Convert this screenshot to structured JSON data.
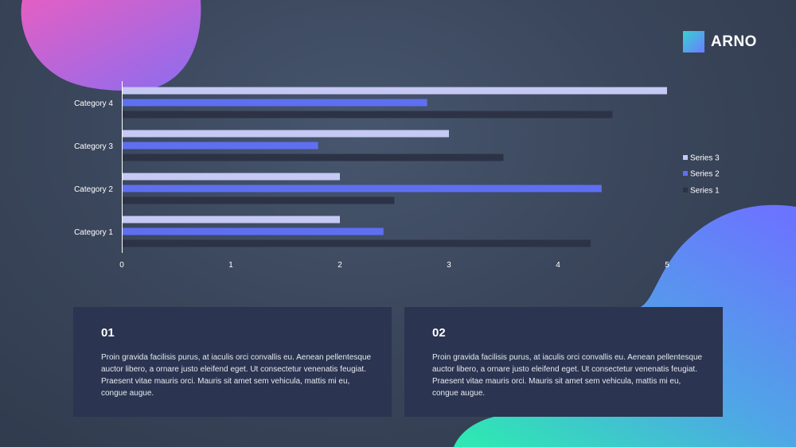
{
  "brand": {
    "name": "ARNO"
  },
  "colors": {
    "series3": "#c5c9f4",
    "series2": "#5f6ff2",
    "series1": "#2d3346",
    "card_bg": "#2b3450",
    "tick_text": "#ffffff"
  },
  "chart_data": {
    "type": "bar",
    "orientation": "horizontal",
    "title": "",
    "xlabel": "",
    "ylabel": "",
    "categories": [
      "Category 1",
      "Category 2",
      "Category 3",
      "Category 4"
    ],
    "series": [
      {
        "name": "Series 1",
        "values": [
          4.3,
          2.5,
          3.5,
          4.5
        ]
      },
      {
        "name": "Series 2",
        "values": [
          2.4,
          4.4,
          1.8,
          2.8
        ]
      },
      {
        "name": "Series 3",
        "values": [
          2.0,
          2.0,
          3.0,
          5.0
        ]
      }
    ],
    "xlim": [
      0,
      5
    ],
    "xticks": [
      "0",
      "1",
      "2",
      "3",
      "4",
      "5"
    ],
    "legend_order": [
      "Series 3",
      "Series 2",
      "Series 1"
    ],
    "legend_position": "right",
    "grid": false
  },
  "cards": [
    {
      "number": "01",
      "text": "Proin  gravida facilisis purus,  at iaculis orci convallis eu. Aenean pellentesque auctor libero,  a ornare  justo eleifend eget.  Ut  consectetur venenatis feugiat. Praesent vitae mauris orci. Mauris sit amet sem vehicula, mattis mi eu, congue  augue."
    },
    {
      "number": "02",
      "text": "Proin  gravida facilisis purus,  at iaculis orci convallis eu. Aenean pellentesque auctor libero,  a ornare  justo eleifend eget.  Ut  consectetur venenatis feugiat. Praesent vitae mauris orci. Mauris sit amet sem vehicula, mattis mi eu, congue  augue."
    }
  ]
}
